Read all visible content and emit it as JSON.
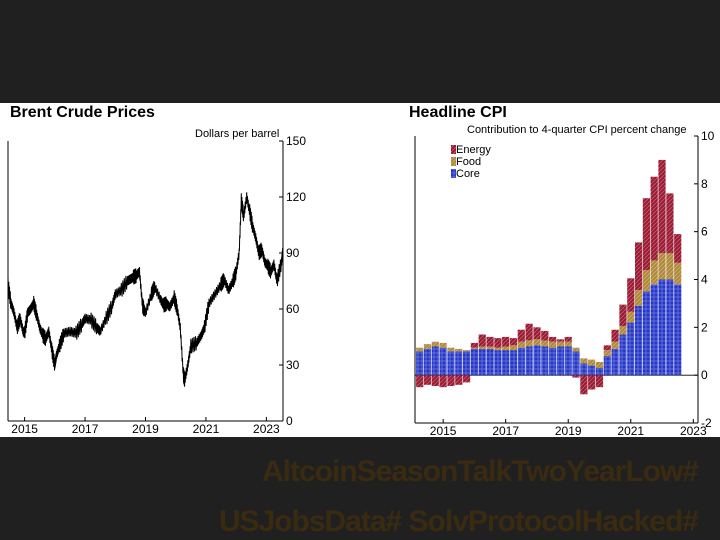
{
  "hashtags": [
    "AltcoinSeasonTalkTwoYearLow#",
    "USJobsData# SolvProtocolHacked#"
  ],
  "chart_data": [
    {
      "type": "line",
      "title": "Brent Crude Prices",
      "ylabel": "Dollars per barrel",
      "ylim": [
        0,
        150
      ],
      "y_ticks": [
        0,
        30,
        60,
        90,
        120,
        150
      ],
      "x_ticks": [
        "2015",
        "2017",
        "2019",
        "2021",
        "2023"
      ],
      "x_range": [
        2014.45,
        2023.55
      ],
      "axis_side": "right",
      "grid": false,
      "color": "#000000",
      "series": [
        {
          "x": [
            2014.45,
            2014.55,
            2014.65,
            2014.75,
            2014.85,
            2014.95,
            2015.0,
            2015.1,
            2015.2,
            2015.3,
            2015.4,
            2015.5,
            2015.6,
            2015.7,
            2015.8,
            2015.9,
            2016.0,
            2016.05,
            2016.15,
            2016.3,
            2016.5,
            2016.7,
            2016.9,
            2017.0,
            2017.2,
            2017.4,
            2017.5,
            2017.7,
            2017.9,
            2018.0,
            2018.2,
            2018.4,
            2018.5,
            2018.6,
            2018.7,
            2018.8,
            2018.9,
            2018.95,
            2019.0,
            2019.2,
            2019.3,
            2019.5,
            2019.6,
            2019.7,
            2019.8,
            2019.95,
            2020.05,
            2020.15,
            2020.25,
            2020.3,
            2020.4,
            2020.5,
            2020.7,
            2020.85,
            2020.95,
            2021.1,
            2021.3,
            2021.5,
            2021.6,
            2021.75,
            2021.9,
            2022.0,
            2022.1,
            2022.17,
            2022.25,
            2022.35,
            2022.45,
            2022.55,
            2022.65,
            2022.75,
            2022.85,
            2022.95,
            2023.05,
            2023.15,
            2023.25,
            2023.35,
            2023.5,
            2023.55
          ],
          "y": [
            73,
            63,
            58,
            50,
            55,
            48,
            47,
            58,
            60,
            63,
            57,
            50,
            46,
            44,
            48,
            38,
            30,
            35,
            40,
            47,
            48,
            47,
            52,
            55,
            54,
            50,
            48,
            55,
            62,
            68,
            70,
            75,
            76,
            77,
            78,
            80,
            62,
            60,
            58,
            68,
            72,
            65,
            62,
            63,
            61,
            66,
            60,
            50,
            25,
            22,
            30,
            40,
            42,
            46,
            50,
            63,
            68,
            73,
            76,
            70,
            75,
            80,
            90,
            118,
            110,
            120,
            112,
            104,
            98,
            90,
            92,
            85,
            83,
            80,
            84,
            75,
            85,
            92
          ]
        }
      ]
    },
    {
      "type": "bar",
      "stacked": true,
      "title": "Headline CPI",
      "ylabel": "Contribution to 4-quarter CPI percent change",
      "ylim": [
        -2,
        10
      ],
      "y_ticks": [
        -2,
        0,
        2,
        4,
        6,
        8,
        10
      ],
      "x_ticks": [
        "2015",
        "2017",
        "2019",
        "2021",
        "2023"
      ],
      "first_bar": 2014.25,
      "bar_step": 0.25,
      "x_range": [
        2014.1,
        2023.15
      ],
      "axis_side": "right",
      "legend": "top-left",
      "series": [
        {
          "name": "Energy",
          "color": "#9b1b34",
          "values": [
            -0.5,
            -0.4,
            -0.45,
            -0.5,
            -0.45,
            -0.4,
            -0.3,
            0.2,
            0.5,
            0.4,
            0.4,
            0.4,
            0.3,
            0.5,
            0.7,
            0.5,
            0.4,
            0.2,
            0.1,
            0.2,
            -0.1,
            -0.8,
            -0.6,
            -0.5,
            0.2,
            0.5,
            0.9,
            1.4,
            2.0,
            3.0,
            3.5,
            3.9,
            2.5,
            1.2
          ]
        },
        {
          "name": "Food",
          "color": "#b08a3c",
          "values": [
            0.15,
            0.2,
            0.2,
            0.2,
            0.15,
            0.1,
            0.05,
            0.05,
            0.1,
            0.1,
            0.1,
            0.15,
            0.2,
            0.25,
            0.25,
            0.25,
            0.25,
            0.25,
            0.2,
            0.2,
            0.15,
            0.2,
            0.25,
            0.25,
            0.25,
            0.3,
            0.35,
            0.45,
            0.65,
            0.9,
            1.0,
            1.1,
            1.1,
            0.9
          ]
        },
        {
          "name": "Core",
          "color": "#2637c7",
          "values": [
            1.0,
            1.1,
            1.2,
            1.15,
            1.0,
            1.0,
            1.0,
            1.1,
            1.1,
            1.1,
            1.05,
            1.05,
            1.05,
            1.15,
            1.2,
            1.25,
            1.2,
            1.15,
            1.2,
            1.2,
            1.0,
            0.5,
            0.4,
            0.3,
            0.8,
            1.1,
            1.7,
            2.2,
            2.9,
            3.5,
            3.8,
            4.0,
            4.0,
            3.8
          ]
        }
      ]
    }
  ]
}
